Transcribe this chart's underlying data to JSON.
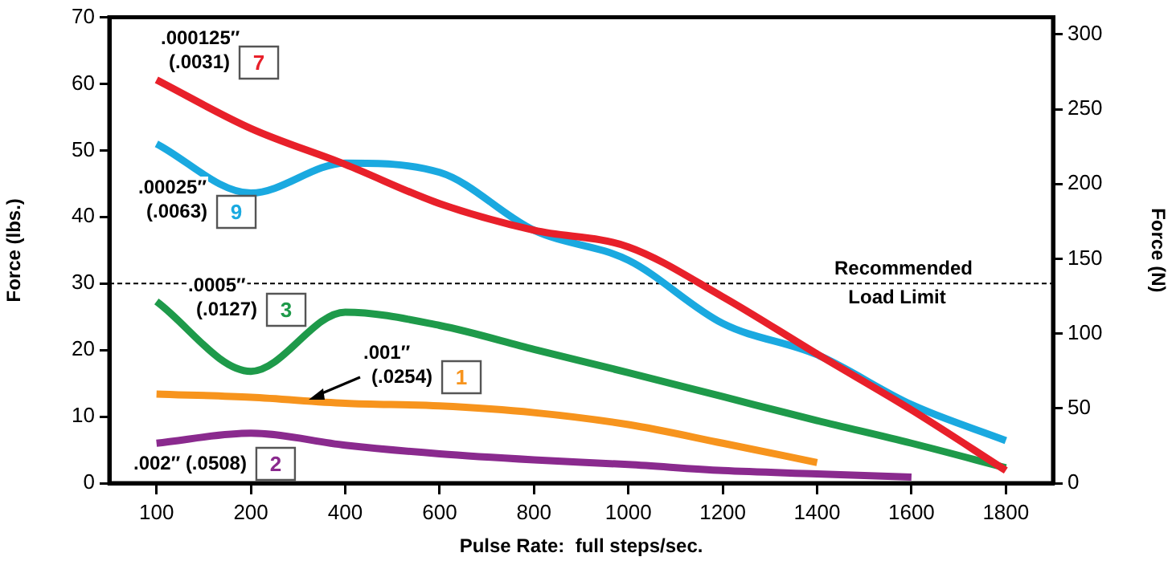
{
  "chart_data": {
    "type": "line",
    "xlabel": "Pulse Rate:  full steps/sec.",
    "ylabel": "Force (lbs.)",
    "y2label": "Force (N)",
    "categories": [
      "100",
      "200",
      "400",
      "600",
      "800",
      "1000",
      "1200",
      "1400",
      "1600",
      "1800"
    ],
    "ylim": [
      0,
      70
    ],
    "yticks": [
      0,
      10,
      20,
      30,
      40,
      50,
      60,
      70
    ],
    "y2lim": [
      0,
      311.4
    ],
    "y2ticks": [
      0,
      50,
      100,
      150,
      200,
      250,
      300
    ],
    "grid": false,
    "legend": false,
    "marker": "none",
    "line_style": "solid",
    "ref_lines": [
      {
        "axis": "y",
        "value": 30,
        "label": "Recommended Load Limit",
        "line_style": "dashed",
        "color": "#000000"
      }
    ],
    "series": [
      {
        "name": ".000125″ (.0031) 7",
        "color": "#e8202a",
        "values": [
          60.6,
          53.3,
          47.9,
          42,
          38,
          35.5,
          28,
          19.4,
          11,
          1.9
        ]
      },
      {
        "name": ".00025″ (.0063) 9",
        "color": "#1aa9e0",
        "values": [
          51,
          43.6,
          48.1,
          46.7,
          38,
          33.5,
          24,
          19.3,
          11.8,
          6.4
        ]
      },
      {
        "name": ".0005″ (.0127) 3",
        "color": "#1e9a4a",
        "values": [
          27.3,
          16.8,
          25.7,
          23.7,
          20.1,
          16.6,
          13,
          9.4,
          6,
          2.3
        ]
      },
      {
        "name": ".001″ (.0254) 1",
        "color": "#f7941d",
        "values": [
          13.4,
          12.9,
          12,
          11.6,
          10.6,
          8.8,
          6,
          3.1,
          null,
          null
        ]
      },
      {
        "name": ".002″ (.0508) 2",
        "color": "#8a2a8e",
        "values": [
          6,
          7.5,
          5.7,
          4.4,
          3.5,
          2.8,
          1.9,
          1.4,
          0.9,
          null
        ]
      }
    ]
  }
}
